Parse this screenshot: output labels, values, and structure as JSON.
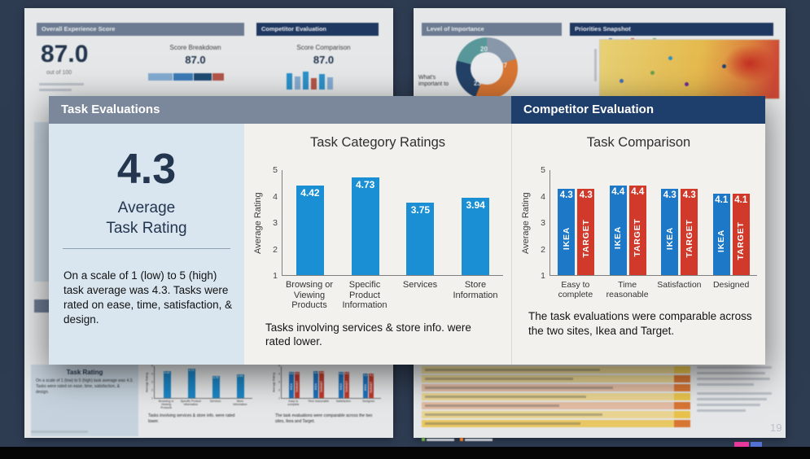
{
  "popup": {
    "left_header": "Task Evaluations",
    "right_header": "Competitor Evaluation",
    "summary": {
      "big_value": "4.3",
      "label_line1": "Average",
      "label_line2": "Task Rating",
      "description": "On a scale of 1 (low) to 5 (high) task average was 4.3. Tasks were rated on ease, time, satisfaction, & design."
    },
    "captions": {
      "category": "Tasks involving services & store info. were rated lower.",
      "comparison": "The task evaluations were comparable across the two sites, Ikea and Target."
    }
  },
  "chart_data": [
    {
      "type": "bar",
      "title": "Task Category Ratings",
      "ylabel": "Average Rating",
      "ylim": [
        1,
        5
      ],
      "yticks": [
        5,
        4,
        3,
        2,
        1
      ],
      "categories": [
        "Browsing or Viewing Products",
        "Specific Product Information",
        "Services",
        "Store Information"
      ],
      "values": [
        4.42,
        4.73,
        3.75,
        3.94
      ],
      "bar_color": "#1b8fd3",
      "value_decimals": 2,
      "grid": false,
      "legend": "none"
    },
    {
      "type": "bar",
      "title": "Task Comparison",
      "ylabel": "Average Rating",
      "ylim": [
        1,
        5
      ],
      "yticks": [
        5,
        4,
        3,
        2,
        1
      ],
      "categories": [
        "Easy to complete",
        "Time reasonable",
        "Satisfaction",
        "Designed"
      ],
      "series": [
        {
          "name": "IKEA",
          "color": "#1d78c8",
          "values": [
            4.3,
            4.4,
            4.3,
            4.1
          ]
        },
        {
          "name": "TARGET",
          "color": "#d13a2b",
          "values": [
            4.3,
            4.4,
            4.3,
            4.1
          ]
        }
      ],
      "value_decimals": 1,
      "grid": false,
      "legend": "in-bar"
    }
  ],
  "background": {
    "left_slide": {
      "header1": "Overall Experience Score",
      "header2": "Competitor Evaluation",
      "score_value": "87.0",
      "score_caption": "out of 100",
      "breakdown_title": "Score Breakdown",
      "breakdown_value": "87.0",
      "comparison_title": "Score Comparison",
      "comparison_value": "87.0",
      "task_rating_label": "Task Rating"
    },
    "right_slide": {
      "header1": "Level of Importance",
      "header2": "Priorities Snapshot",
      "whats_important": "What's important to",
      "donut_labels": [
        "20",
        "37",
        "23"
      ],
      "page_number": "19"
    }
  }
}
